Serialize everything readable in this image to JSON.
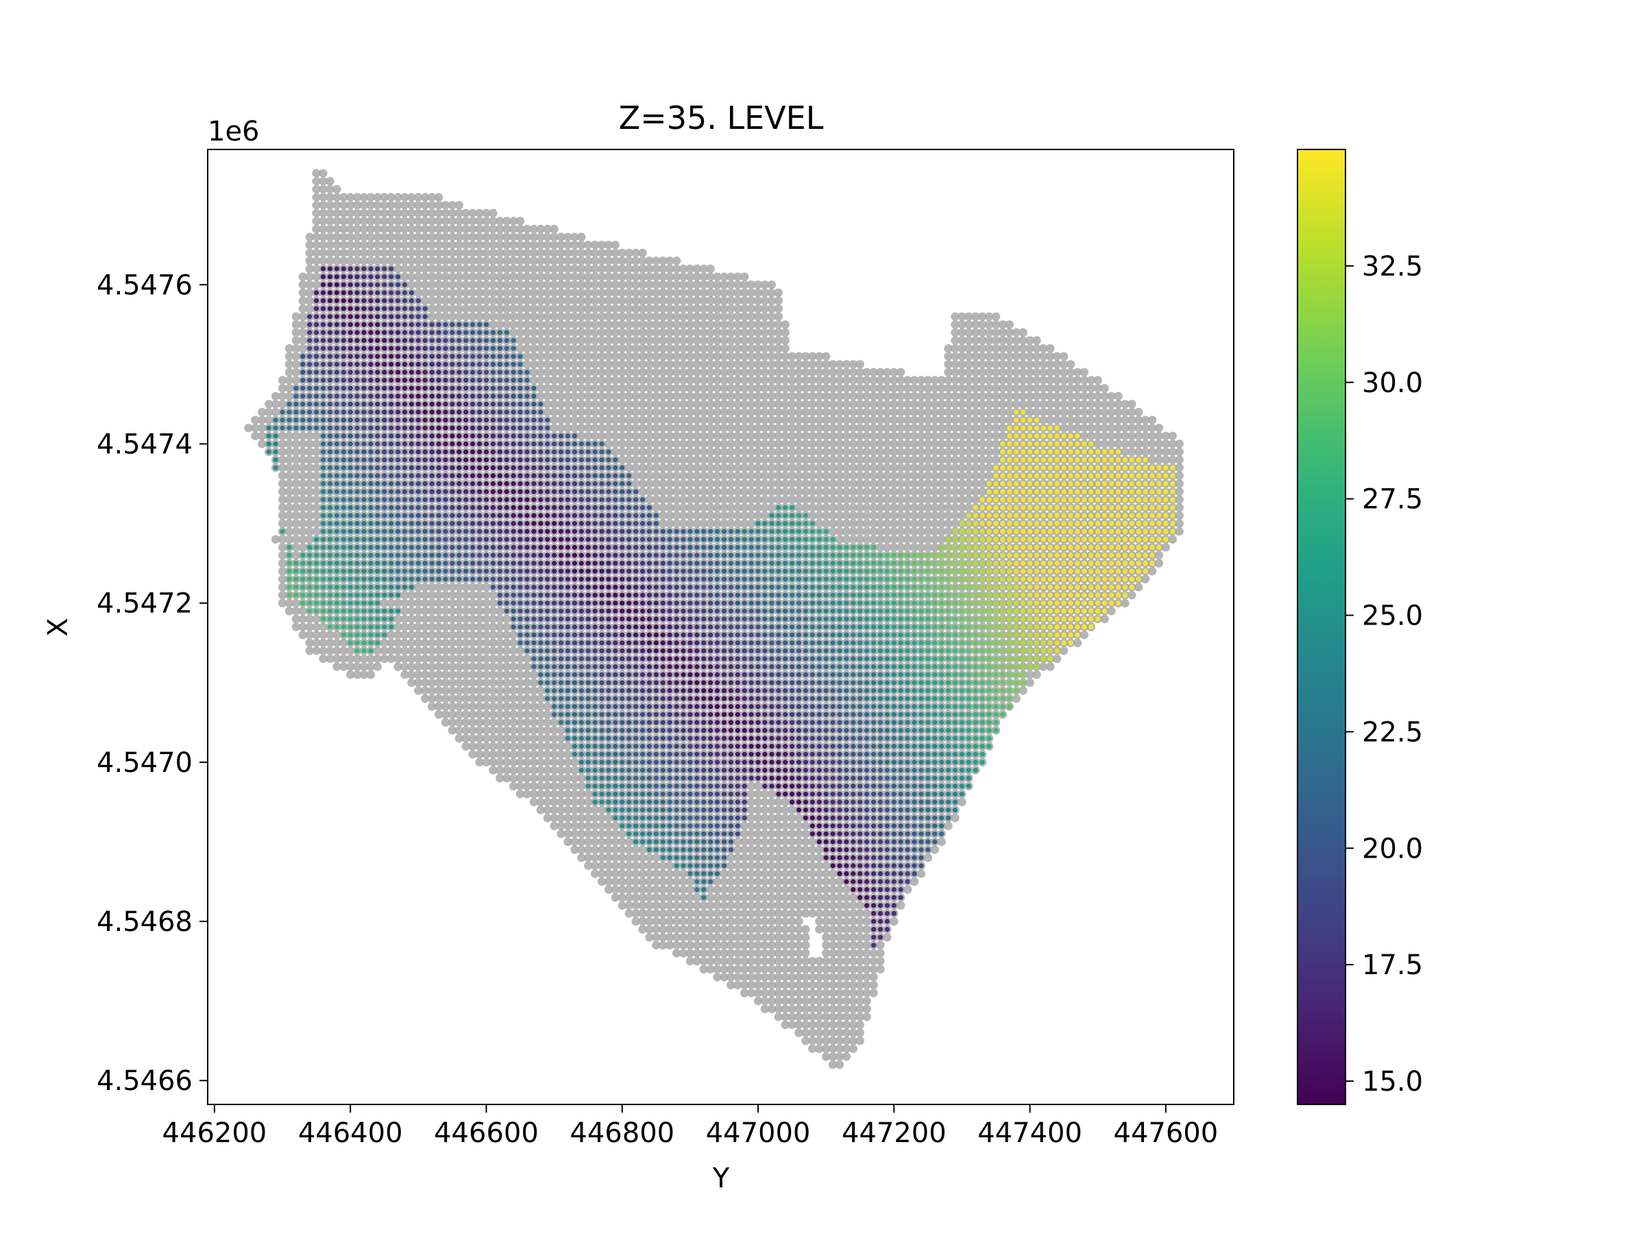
{
  "chart_data": {
    "type": "scatter",
    "title": "Z=35. LEVEL",
    "xlabel": "Y",
    "ylabel": "X",
    "y_offset_label": "1e6",
    "xlim": [
      446190,
      447700
    ],
    "ylim": [
      4546570,
      4547770
    ],
    "xticks": [
      446200,
      446400,
      446600,
      446800,
      447000,
      447200,
      447400,
      447600
    ],
    "xtick_labels": [
      "446200",
      "446400",
      "446600",
      "446800",
      "447000",
      "447200",
      "447400",
      "447600"
    ],
    "yticks": [
      4546600,
      4546800,
      4547000,
      4547200,
      4547400,
      4547600
    ],
    "ytick_labels": [
      "4.5466",
      "4.5468",
      "4.5470",
      "4.5472",
      "4.5474",
      "4.5476"
    ],
    "grid": false,
    "colormap": "viridis",
    "colorbar": {
      "range": [
        14.5,
        35.0
      ],
      "ticks": [
        15.0,
        17.5,
        20.0,
        22.5,
        25.0,
        27.5,
        30.0,
        32.5
      ],
      "tick_labels": [
        "15.0",
        "17.5",
        "20.0",
        "22.5",
        "25.0",
        "27.5",
        "30.0",
        "32.5"
      ]
    },
    "series": [
      {
        "role": "domain-all-cells",
        "color": "#a8a8a8",
        "grid_spacing": 10,
        "boundary": [
          [
            446350,
            4547750
          ],
          [
            446390,
            4547720
          ],
          [
            446500,
            4547720
          ],
          [
            446570,
            4547700
          ],
          [
            446660,
            4547680
          ],
          [
            446840,
            4547640
          ],
          [
            447030,
            4547600
          ],
          [
            447050,
            4547520
          ],
          [
            447270,
            4547480
          ],
          [
            447290,
            4547570
          ],
          [
            447340,
            4547570
          ],
          [
            447400,
            4547540
          ],
          [
            447520,
            4547470
          ],
          [
            447630,
            4547400
          ],
          [
            447630,
            4547300
          ],
          [
            447570,
            4547220
          ],
          [
            447500,
            4547170
          ],
          [
            447420,
            4547110
          ],
          [
            447360,
            4547050
          ],
          [
            447320,
            4546980
          ],
          [
            447280,
            4546910
          ],
          [
            447220,
            4546830
          ],
          [
            447190,
            4546770
          ],
          [
            447170,
            4546700
          ],
          [
            447150,
            4546640
          ],
          [
            447120,
            4546610
          ],
          [
            447080,
            4546640
          ],
          [
            446980,
            4546710
          ],
          [
            446850,
            4546770
          ],
          [
            446770,
            4546850
          ],
          [
            446690,
            4546930
          ],
          [
            446590,
            4547000
          ],
          [
            446520,
            4547070
          ],
          [
            446460,
            4547130
          ],
          [
            446420,
            4547100
          ],
          [
            446340,
            4547140
          ],
          [
            446300,
            4547200
          ],
          [
            446290,
            4547280
          ],
          [
            446300,
            4547350
          ],
          [
            446270,
            4547400
          ],
          [
            446250,
            4547420
          ],
          [
            446300,
            4547480
          ],
          [
            446320,
            4547560
          ],
          [
            446340,
            4547660
          ]
        ],
        "holes": [
          [
            [
              447080,
              4546810
            ],
            [
              447095,
              4546780
            ],
            [
              447100,
              4546755
            ],
            [
              447085,
              4546750
            ],
            [
              447075,
              4546770
            ],
            [
              447070,
              4546800
            ]
          ]
        ]
      },
      {
        "role": "level-z35",
        "value_field": "z",
        "value_range": [
          14.6,
          34.8
        ],
        "boundary": [
          [
            446360,
            4547630
          ],
          [
            446470,
            4547620
          ],
          [
            446520,
            4547560
          ],
          [
            446580,
            4547560
          ],
          [
            446640,
            4547540
          ],
          [
            446700,
            4547420
          ],
          [
            446780,
            4547400
          ],
          [
            446860,
            4547300
          ],
          [
            446920,
            4547300
          ],
          [
            447000,
            4547300
          ],
          [
            447040,
            4547330
          ],
          [
            447120,
            4547280
          ],
          [
            447180,
            4547270
          ],
          [
            447250,
            4547260
          ],
          [
            447330,
            4547330
          ],
          [
            447380,
            4547450
          ],
          [
            447420,
            4547430
          ],
          [
            447500,
            4547400
          ],
          [
            447620,
            4547370
          ],
          [
            447620,
            4547300
          ],
          [
            447560,
            4547220
          ],
          [
            447480,
            4547160
          ],
          [
            447400,
            4547110
          ],
          [
            447360,
            4547050
          ],
          [
            447320,
            4546980
          ],
          [
            447280,
            4546920
          ],
          [
            447220,
            4546840
          ],
          [
            447190,
            4546780
          ],
          [
            447170,
            4546760
          ],
          [
            447160,
            4546820
          ],
          [
            447100,
            4546880
          ],
          [
            447050,
            4546950
          ],
          [
            446990,
            4546980
          ],
          [
            446980,
            4546860
          ],
          [
            446960,
            4546780
          ],
          [
            446930,
            4546780
          ],
          [
            446900,
            4546860
          ],
          [
            446820,
            4546900
          ],
          [
            446760,
            4546950
          ],
          [
            446700,
            4547050
          ],
          [
            446640,
            4547150
          ],
          [
            446570,
            4547200
          ],
          [
            446480,
            4547200
          ],
          [
            446450,
            4547150
          ],
          [
            446420,
            4547130
          ],
          [
            446370,
            4547170
          ],
          [
            446310,
            4547210
          ],
          [
            446300,
            4547290
          ],
          [
            446280,
            4547350
          ],
          [
            446280,
            4547420
          ],
          [
            446320,
            4547470
          ],
          [
            446340,
            4547560
          ]
        ],
        "holes": [
          [
            [
              446780,
              4547620
            ],
            [
              446830,
              4547570
            ],
            [
              446880,
              4547520
            ],
            [
              446930,
              4547460
            ],
            [
              446970,
              4547420
            ],
            [
              447030,
              4547330
            ],
            [
              446950,
              4547320
            ],
            [
              446870,
              4547380
            ],
            [
              446800,
              4547420
            ],
            [
              446750,
              4547480
            ],
            [
              446710,
              4547560
            ],
            [
              446740,
              4547600
            ]
          ],
          [
            [
              446450,
              4547200
            ],
            [
              446520,
              4547230
            ],
            [
              446600,
              4547230
            ],
            [
              446650,
              4547150
            ],
            [
              446700,
              4547060
            ],
            [
              446740,
              4546990
            ],
            [
              446690,
              4546980
            ],
            [
              446620,
              4547060
            ],
            [
              446560,
              4547150
            ],
            [
              446500,
              4547180
            ]
          ],
          [
            [
              446300,
              4547420
            ],
            [
              446360,
              4547420
            ],
            [
              446350,
              4547280
            ],
            [
              446320,
              4547250
            ],
            [
              446300,
              4547300
            ]
          ],
          [
            [
              446840,
              4546720
            ],
            [
              446900,
              4546800
            ],
            [
              446960,
              4546880
            ],
            [
              446990,
              4546950
            ],
            [
              447050,
              4546900
            ],
            [
              447070,
              4546840
            ],
            [
              447050,
              4546780
            ],
            [
              446980,
              4546700
            ]
          ]
        ],
        "ridge_line": [
          [
            446370,
            4547600
          ],
          [
            446560,
            4547400
          ],
          [
            446800,
            4547200
          ],
          [
            447020,
            4547000
          ],
          [
            447150,
            4546820
          ]
        ],
        "ridge_value": 15.0,
        "ridge_gradient_per_m": 0.045
      }
    ]
  }
}
